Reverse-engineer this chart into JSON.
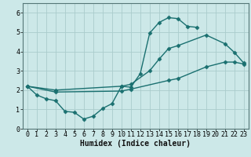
{
  "xlabel": "Humidex (Indice chaleur)",
  "bg_color": "#cce8e8",
  "grid_color": "#aacccc",
  "line_color": "#1a7070",
  "xlim": [
    -0.5,
    23.5
  ],
  "ylim": [
    0,
    6.5
  ],
  "xticks": [
    0,
    1,
    2,
    3,
    4,
    5,
    6,
    7,
    8,
    9,
    10,
    11,
    12,
    13,
    14,
    15,
    16,
    17,
    18,
    19,
    20,
    21,
    22,
    23
  ],
  "yticks": [
    0,
    1,
    2,
    3,
    4,
    5,
    6
  ],
  "curve1_x": [
    0,
    1,
    2,
    3,
    4,
    5,
    6,
    7,
    8,
    9,
    10,
    11,
    12,
    13,
    14,
    15,
    16,
    17,
    18
  ],
  "curve1_y": [
    2.2,
    1.75,
    1.55,
    1.45,
    0.9,
    0.85,
    0.5,
    0.65,
    1.05,
    1.3,
    2.2,
    2.15,
    2.85,
    4.95,
    5.5,
    5.75,
    5.7,
    5.3,
    5.25
  ],
  "curve2_x": [
    0,
    3,
    10,
    11,
    13,
    14,
    15,
    16,
    19,
    21,
    22,
    23
  ],
  "curve2_y": [
    2.2,
    2.0,
    2.2,
    2.3,
    3.0,
    3.6,
    4.15,
    4.3,
    4.85,
    4.4,
    3.95,
    3.4
  ],
  "curve3_x": [
    0,
    3,
    10,
    11,
    15,
    16,
    19,
    21,
    22,
    23
  ],
  "curve3_y": [
    2.2,
    1.9,
    1.95,
    2.05,
    2.5,
    2.6,
    3.2,
    3.45,
    3.45,
    3.35
  ],
  "marker": "D",
  "marker_size": 2.5,
  "line_width": 1.0,
  "tick_fontsize": 6.0,
  "xlabel_fontsize": 7.0
}
